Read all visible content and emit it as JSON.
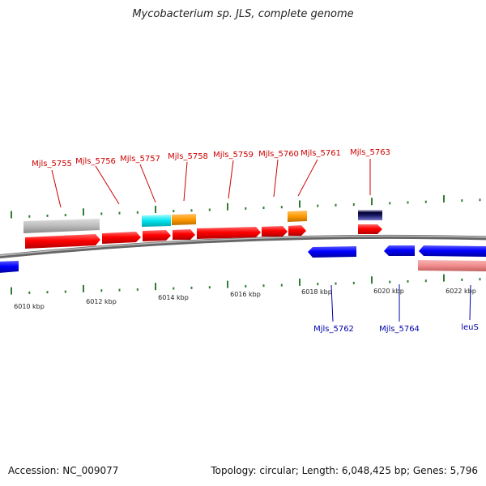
{
  "title": "Mycobacterium sp. JLS, complete genome",
  "footer": {
    "accession": "Accession: NC_009077",
    "topology": "Topology: circular; Length: 6,048,425 bp; Genes: 5,796"
  },
  "colors": {
    "forward_gene": "#ff0000",
    "reverse_gene": "#0000ff",
    "forward_label": "#cc0000",
    "reverse_label": "#0000aa",
    "backbone": "#888888",
    "tick": "#2e7d32",
    "grey_feature": "#bbbbbb",
    "cyan_feature": "#00e5ee",
    "orange_feature": "#ff9900",
    "navy_feature": "#1a1a66",
    "pink_feature": "#f28c8c"
  },
  "scale_labels": [
    "6010 kbp",
    "6012 kbp",
    "6014 kbp",
    "6016 kbp",
    "6018 kbp",
    "6020 kbp",
    "6022 kbp"
  ],
  "forward_gene_labels": [
    "Mjls_5755",
    "Mjls_5756",
    "Mjls_5757",
    "Mjls_5758",
    "Mjls_5759",
    "Mjls_5760",
    "Mjls_5761",
    "Mjls_5763"
  ],
  "reverse_gene_labels": [
    "Mjls_5762",
    "Mjls_5764",
    "leuS"
  ]
}
